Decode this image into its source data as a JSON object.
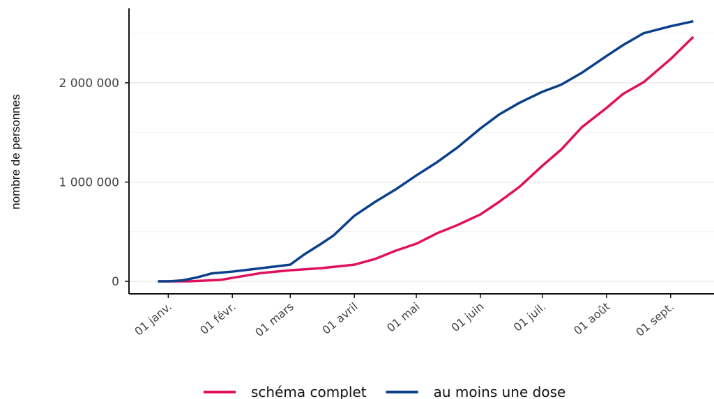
{
  "chart_data": {
    "type": "line",
    "y_label": "nombre de personnes",
    "xlim": [
      -19,
      264
    ],
    "xticks": [
      {
        "value": 0,
        "label": "01 janv."
      },
      {
        "value": 31,
        "label": "01 févr."
      },
      {
        "value": 59,
        "label": "01 mars"
      },
      {
        "value": 90,
        "label": "01 avril"
      },
      {
        "value": 120,
        "label": "01 mai"
      },
      {
        "value": 151,
        "label": "01 juin"
      },
      {
        "value": 181,
        "label": "01 juil."
      },
      {
        "value": 212,
        "label": "01 août"
      },
      {
        "value": 243,
        "label": "01 sept."
      }
    ],
    "ylim": [
      -126000,
      2750000
    ],
    "yticks": [
      0,
      {
        "value": 1000000,
        "label": "1 000 000"
      },
      {
        "value": 2000000,
        "label": "2 000 000"
      }
    ],
    "minor_yticks": [
      500000,
      1500000,
      2500000
    ],
    "grid": true,
    "legend": "bottom",
    "series": [
      {
        "name": "schéma complet",
        "color": "#e0105c",
        "x": [
          -5,
          10,
          25,
          35,
          45,
          59,
          74,
          90,
          100,
          110,
          120,
          130,
          140,
          151,
          160,
          170,
          181,
          190,
          200,
          212,
          220,
          230,
          243,
          254
        ],
        "values": [
          0,
          0,
          14000,
          49000,
          84000,
          112000,
          133000,
          168000,
          225000,
          309000,
          379000,
          484000,
          568000,
          674000,
          800000,
          954000,
          1165000,
          1326000,
          1551000,
          1747000,
          1888000,
          2007000,
          2239000,
          2463000
        ]
      },
      {
        "name": "au moins une dose",
        "color": "#0a3f8c",
        "x": [
          -5,
          0,
          7,
          14,
          21,
          31,
          45,
          59,
          66,
          74,
          80,
          90,
          100,
          110,
          120,
          130,
          140,
          151,
          160,
          170,
          181,
          190,
          200,
          212,
          220,
          230,
          243,
          254
        ],
        "values": [
          0,
          0,
          10000,
          40000,
          80000,
          98000,
          133000,
          168000,
          274000,
          379000,
          463000,
          660000,
          800000,
          926000,
          1067000,
          1200000,
          1350000,
          1540000,
          1680000,
          1800000,
          1910000,
          1980000,
          2100000,
          2270000,
          2380000,
          2500000,
          2570000,
          2620000
        ]
      }
    ]
  }
}
